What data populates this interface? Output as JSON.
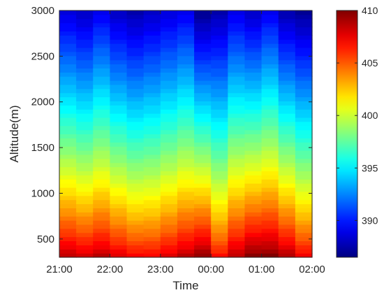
{
  "chart_data": {
    "type": "heatmap",
    "title": "",
    "xlabel": "Time",
    "ylabel": "Altitude(m)",
    "x_ticks": [
      "21:00",
      "22:00",
      "23:00",
      "00:00",
      "01:00",
      "02:00"
    ],
    "y_ticks": [
      500,
      1000,
      1500,
      2000,
      2500,
      3000
    ],
    "y_range": [
      300,
      3000
    ],
    "columns": 15,
    "colorbar": {
      "min": 386.5,
      "max": 410,
      "ticks": [
        390,
        395,
        400,
        405,
        410
      ],
      "colormap": "jet"
    },
    "column_profiles": [
      {
        "surface": 409,
        "top": 388.5,
        "offset": 0.0
      },
      {
        "surface": 408.5,
        "top": 388.0,
        "offset": 0.0
      },
      {
        "surface": 409,
        "top": 389.0,
        "offset": 0.0
      },
      {
        "surface": 408.5,
        "top": 388.0,
        "offset": -0.3
      },
      {
        "surface": 408.0,
        "top": 387.5,
        "offset": -0.5
      },
      {
        "surface": 408.0,
        "top": 388.0,
        "offset": -0.5
      },
      {
        "surface": 408.5,
        "top": 388.5,
        "offset": -0.3
      },
      {
        "surface": 409.0,
        "top": 389.0,
        "offset": 0.0
      },
      {
        "surface": 409.5,
        "top": 386.8,
        "offset": 0.5
      },
      {
        "surface": 407.5,
        "top": 387.5,
        "offset": -0.3
      },
      {
        "surface": 408.5,
        "top": 388.8,
        "offset": 0.5
      },
      {
        "surface": 409.5,
        "top": 388.0,
        "offset": 0.8
      },
      {
        "surface": 409.5,
        "top": 389.0,
        "offset": 0.8
      },
      {
        "surface": 409.0,
        "top": 387.5,
        "offset": 0.3
      },
      {
        "surface": 408.0,
        "top": 387.0,
        "offset": -0.3
      }
    ],
    "colors": {
      "axis": "#262626",
      "background": "#ffffff"
    }
  }
}
